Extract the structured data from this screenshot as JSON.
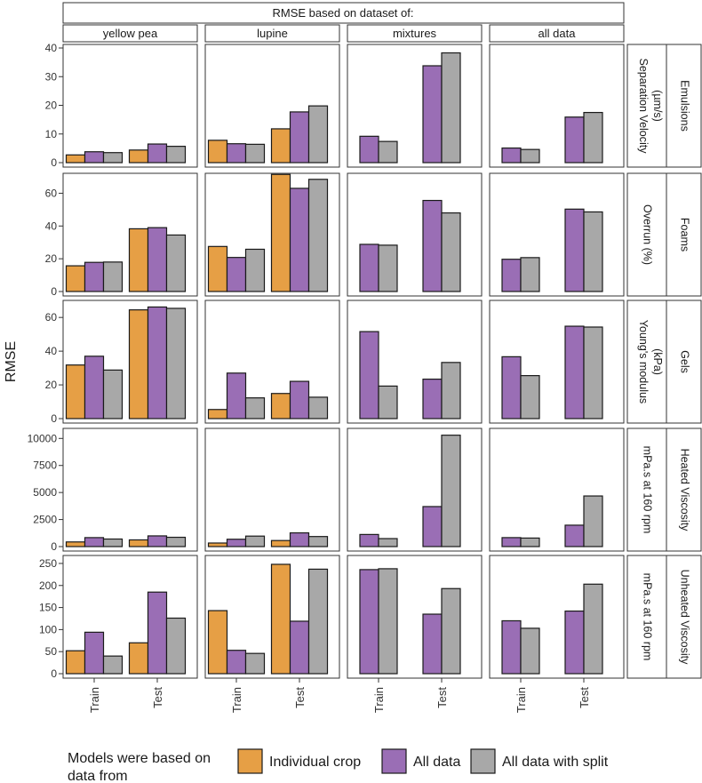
{
  "chart_data": {
    "type": "bar",
    "title": "RMSE based on dataset of:",
    "ylabel": "RMSE",
    "columns": [
      "yellow pea",
      "lupine",
      "mixtures",
      "all data"
    ],
    "categories": [
      "Train",
      "Test"
    ],
    "series_names": [
      "Individual crop",
      "All data",
      "All data with split"
    ],
    "colors": {
      "Individual crop": "#E69F45",
      "All data": "#9A6EB5",
      "All data with split": "#A8A8A8"
    },
    "legend": {
      "title_line1": "Models were based on",
      "title_line2": "data from",
      "items": [
        "Individual crop",
        "All data",
        "All data with split"
      ]
    },
    "rows": [
      {
        "facet": "Emulsions",
        "label_line1": "Separation Velocity",
        "label_line2": "(µm/s)",
        "ylim": [
          0,
          40
        ],
        "ticks": [
          "0",
          "10",
          "20",
          "30",
          "40"
        ],
        "tick_values": [
          0,
          10,
          20,
          30,
          40
        ],
        "panels": [
          {
            "Train": [
              2.7,
              3.8,
              3.5
            ],
            "Test": [
              4.4,
              6.5,
              5.7
            ]
          },
          {
            "Train": [
              7.8,
              6.6,
              6.4
            ],
            "Test": [
              11.8,
              17.7,
              19.8
            ]
          },
          {
            "Train": [
              null,
              9.2,
              7.4
            ],
            "Test": [
              null,
              33.8,
              38.3
            ]
          },
          {
            "Train": [
              null,
              5.1,
              4.6
            ],
            "Test": [
              null,
              15.9,
              17.5
            ]
          }
        ]
      },
      {
        "facet": "Foams",
        "label_line1": "Overrun (%)",
        "label_line2": "",
        "ylim": [
          0,
          70
        ],
        "ticks": [
          "0",
          "20",
          "40",
          "60"
        ],
        "tick_values": [
          0,
          20,
          40,
          60
        ],
        "panels": [
          {
            "Train": [
              15.7,
              17.8,
              18.0
            ],
            "Test": [
              38.3,
              39.0,
              34.5
            ]
          },
          {
            "Train": [
              27.5,
              20.8,
              25.8
            ],
            "Test": [
              71.5,
              63.0,
              68.5
            ]
          },
          {
            "Train": [
              null,
              28.8,
              28.3
            ],
            "Test": [
              null,
              55.6,
              48.0
            ]
          },
          {
            "Train": [
              null,
              19.7,
              20.7
            ],
            "Test": [
              null,
              50.3,
              48.6
            ]
          }
        ]
      },
      {
        "facet": "Gels",
        "label_line1": "Young's modulus",
        "label_line2": "(kPa)",
        "ylim": [
          0,
          68
        ],
        "ticks": [
          "0",
          "20",
          "40",
          "60"
        ],
        "tick_values": [
          0,
          20,
          40,
          60
        ],
        "panels": [
          {
            "Train": [
              31.8,
              37.0,
              28.8
            ],
            "Test": [
              64.5,
              66.2,
              65.4
            ]
          },
          {
            "Train": [
              5.4,
              27.0,
              12.3
            ],
            "Test": [
              14.9,
              22.1,
              12.7
            ]
          },
          {
            "Train": [
              null,
              51.6,
              19.3
            ],
            "Test": [
              null,
              23.4,
              33.3
            ]
          },
          {
            "Train": [
              null,
              36.7,
              25.5
            ],
            "Test": [
              null,
              54.8,
              54.3
            ]
          }
        ]
      },
      {
        "facet": "Heated Viscosity",
        "label_line1": "mPa.s at 160 rpm",
        "label_line2": "",
        "ylim": [
          0,
          10600
        ],
        "ticks": [
          "0",
          "2500",
          "5000",
          "7500",
          "10000"
        ],
        "tick_values": [
          0,
          2500,
          5000,
          7500,
          10000
        ],
        "panels": [
          {
            "Train": [
              430,
              830,
              700
            ],
            "Test": [
              620,
              990,
              860
            ]
          },
          {
            "Train": [
              330,
              680,
              970
            ],
            "Test": [
              560,
              1270,
              930
            ]
          },
          {
            "Train": [
              null,
              1120,
              740
            ],
            "Test": [
              null,
              3700,
              10300
            ]
          },
          {
            "Train": [
              null,
              830,
              790
            ],
            "Test": [
              null,
              1980,
              4680
            ]
          }
        ]
      },
      {
        "facet": "Unheated Viscosity",
        "label_line1": "mPa.s at 160 rpm",
        "label_line2": "",
        "ylim": [
          0,
          260
        ],
        "ticks": [
          "0",
          "50",
          "100",
          "150",
          "200",
          "250"
        ],
        "tick_values": [
          0,
          50,
          100,
          150,
          200,
          250
        ],
        "panels": [
          {
            "Train": [
              52,
              94,
              40
            ],
            "Test": [
              70,
              185,
              126
            ]
          },
          {
            "Train": [
              143,
              53,
              46
            ],
            "Test": [
              248,
              119,
              237
            ]
          },
          {
            "Train": [
              null,
              236,
              238
            ],
            "Test": [
              null,
              135,
              193
            ]
          },
          {
            "Train": [
              null,
              120,
              103
            ],
            "Test": [
              null,
              142,
              203
            ]
          }
        ]
      }
    ]
  }
}
